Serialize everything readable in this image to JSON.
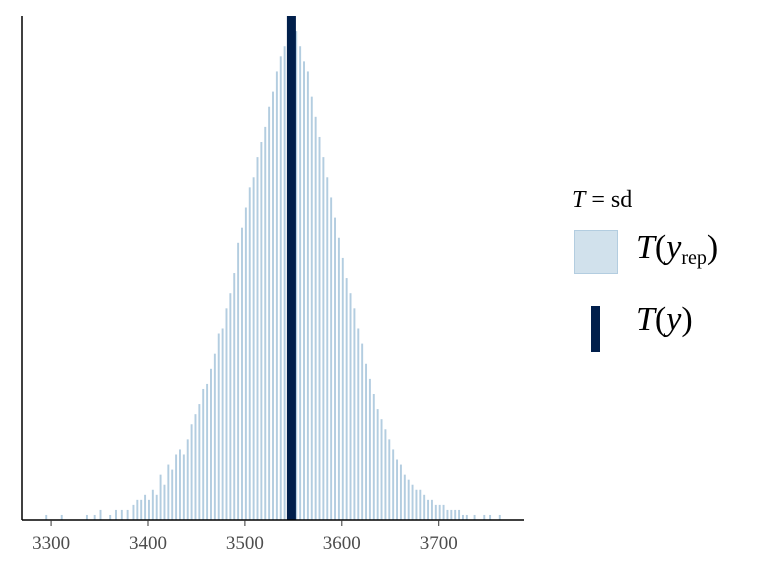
{
  "chart_data": {
    "type": "histogram",
    "x_ticks": [
      3300,
      3400,
      3500,
      3600,
      3700
    ],
    "xlim": [
      3270,
      3788
    ],
    "observed_statistic": {
      "value": 3548,
      "color": "#011f4b"
    },
    "replicate_fill": "#b3cde0",
    "legend": {
      "title_var": "T",
      "title_eq": " = sd",
      "items": [
        {
          "symbol": "box",
          "label_fn": "T",
          "label_arg": "y",
          "label_sub": "rep"
        },
        {
          "symbol": "bar",
          "label_fn": "T",
          "label_arg": "y",
          "label_sub": ""
        }
      ],
      "position": "right"
    },
    "bins": {
      "binwidth": 2,
      "peak_count": 100,
      "counts_x": [
        3294,
        3310,
        3336,
        3344,
        3350,
        3360,
        3366,
        3372,
        3378,
        3384,
        3388,
        3392,
        3396,
        3400,
        3404,
        3408,
        3412,
        3416,
        3420,
        3424,
        3428,
        3432,
        3436,
        3440,
        3444,
        3448,
        3452,
        3456,
        3460,
        3464,
        3468,
        3472,
        3476,
        3480,
        3484,
        3488,
        3492,
        3496,
        3500,
        3504,
        3508,
        3512,
        3516,
        3520,
        3524,
        3528,
        3532,
        3536,
        3540,
        3544,
        3548,
        3552,
        3556,
        3560,
        3564,
        3568,
        3572,
        3576,
        3580,
        3584,
        3588,
        3592,
        3596,
        3600,
        3604,
        3608,
        3612,
        3616,
        3620,
        3624,
        3628,
        3632,
        3636,
        3640,
        3644,
        3648,
        3652,
        3656,
        3660,
        3664,
        3668,
        3672,
        3676,
        3680,
        3684,
        3688,
        3692,
        3696,
        3700,
        3704,
        3708,
        3712,
        3716,
        3720,
        3724,
        3728,
        3736,
        3746,
        3752,
        3762
      ],
      "counts_y": [
        1,
        1,
        1,
        1,
        2,
        1,
        2,
        2,
        2,
        3,
        4,
        4,
        5,
        4,
        6,
        5,
        9,
        7,
        11,
        10,
        13,
        14,
        13,
        16,
        19,
        21,
        23,
        26,
        27,
        30,
        33,
        37,
        38,
        42,
        45,
        49,
        55,
        58,
        62,
        66,
        68,
        72,
        75,
        78,
        82,
        85,
        89,
        92,
        94,
        97,
        99,
        97,
        94,
        91,
        89,
        84,
        80,
        76,
        72,
        68,
        64,
        60,
        56,
        52,
        48,
        45,
        42,
        38,
        35,
        31,
        28,
        25,
        22,
        20,
        18,
        16,
        14,
        12,
        11,
        9,
        8,
        7,
        6,
        6,
        5,
        4,
        4,
        3,
        3,
        3,
        2,
        2,
        2,
        2,
        1,
        1,
        1,
        1,
        1,
        1
      ]
    }
  }
}
